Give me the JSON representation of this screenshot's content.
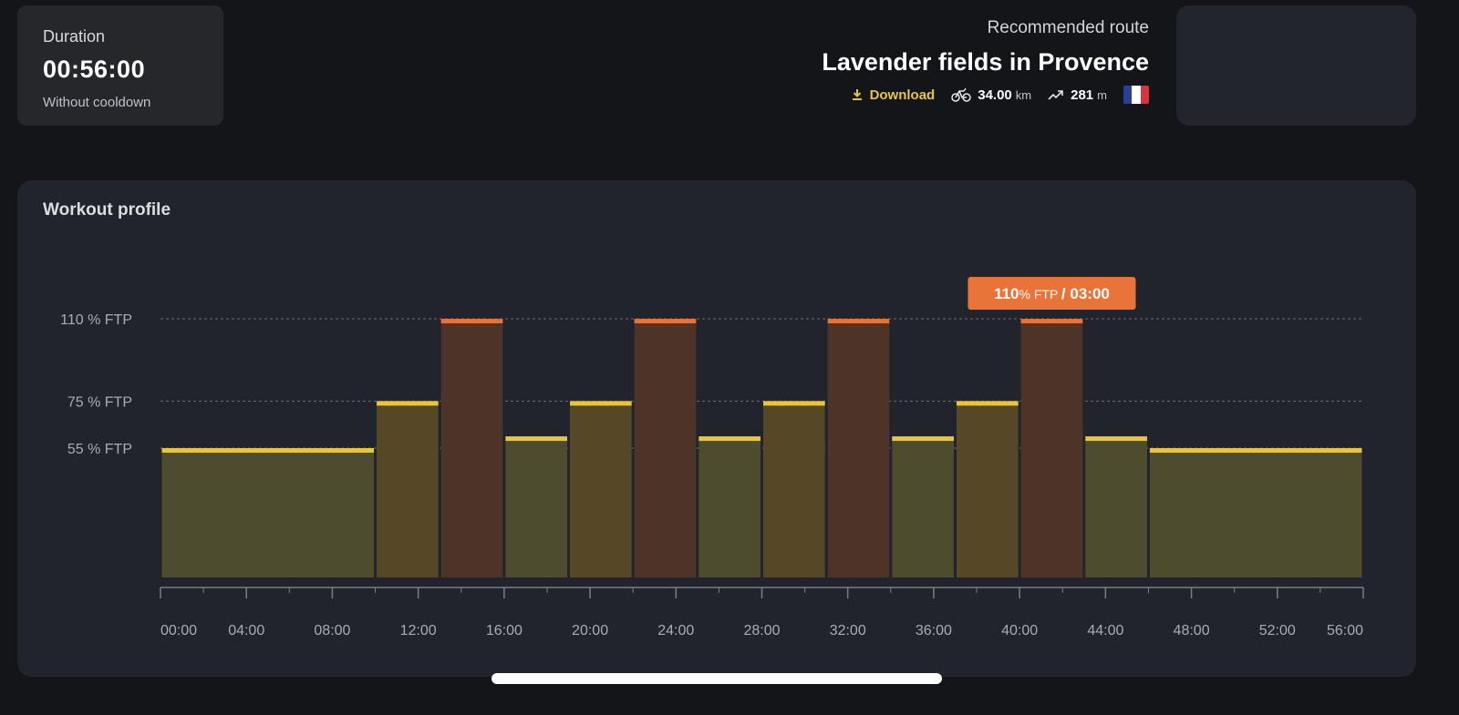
{
  "duration": {
    "label": "Duration",
    "value": "00:56:00",
    "subtitle": "Without cooldown"
  },
  "route": {
    "kicker": "Recommended route",
    "title": "Lavender fields in Provence",
    "download_label": "Download",
    "distance_value": "34.00",
    "distance_unit": "km",
    "elevation_value": "281",
    "elevation_unit": "m",
    "flag_colors": [
      "#2a3f9a",
      "#ffffff",
      "#d8343e"
    ]
  },
  "profile": {
    "title": "Workout profile"
  },
  "colors": {
    "accent": "#e8c53b",
    "tooltip": "#e8743a",
    "endurance_fill": "#4e4c2e",
    "endurance_line": "#e8c53b",
    "tempo_fill": "#564726",
    "threshold_fill": "#4e3329",
    "threshold_line": "#e2733a"
  },
  "chart_data": {
    "type": "bar",
    "title": "Workout profile",
    "y_reference_labels": [
      {
        "value": 110,
        "label": "110 % FTP"
      },
      {
        "value": 75,
        "label": "75 % FTP"
      },
      {
        "value": 55,
        "label": "55 % FTP"
      }
    ],
    "ylim": [
      0,
      110
    ],
    "x_unit": "minutes",
    "xlim": [
      0,
      56
    ],
    "x_tick_labels": [
      "00:00",
      "04:00",
      "08:00",
      "12:00",
      "16:00",
      "20:00",
      "24:00",
      "28:00",
      "32:00",
      "36:00",
      "40:00",
      "44:00",
      "48:00",
      "52:00",
      "56:00"
    ],
    "x_tick_values": [
      0,
      4,
      8,
      12,
      16,
      20,
      24,
      28,
      32,
      36,
      40,
      44,
      48,
      52,
      56
    ],
    "minor_tick_values": [
      2,
      6,
      10,
      14,
      18,
      22,
      26,
      30,
      34,
      38,
      42,
      46,
      50,
      54
    ],
    "segments": [
      {
        "start": 0,
        "end": 10,
        "ftp": 55,
        "zone": "endurance"
      },
      {
        "start": 10,
        "end": 13,
        "ftp": 75,
        "zone": "tempo"
      },
      {
        "start": 13,
        "end": 16,
        "ftp": 110,
        "zone": "threshold"
      },
      {
        "start": 16,
        "end": 19,
        "ftp": 60,
        "zone": "endurance"
      },
      {
        "start": 19,
        "end": 22,
        "ftp": 75,
        "zone": "tempo"
      },
      {
        "start": 22,
        "end": 25,
        "ftp": 110,
        "zone": "threshold"
      },
      {
        "start": 25,
        "end": 28,
        "ftp": 60,
        "zone": "endurance"
      },
      {
        "start": 28,
        "end": 31,
        "ftp": 75,
        "zone": "tempo"
      },
      {
        "start": 31,
        "end": 34,
        "ftp": 110,
        "zone": "threshold"
      },
      {
        "start": 34,
        "end": 37,
        "ftp": 60,
        "zone": "endurance"
      },
      {
        "start": 37,
        "end": 40,
        "ftp": 75,
        "zone": "tempo"
      },
      {
        "start": 40,
        "end": 43,
        "ftp": 110,
        "zone": "threshold"
      },
      {
        "start": 43,
        "end": 46,
        "ftp": 60,
        "zone": "endurance"
      },
      {
        "start": 46,
        "end": 56,
        "ftp": 55,
        "zone": "endurance"
      }
    ],
    "tooltip": {
      "segment_index": 11,
      "value": "110",
      "unit": "% FTP",
      "separator": "/",
      "duration": "03:00"
    }
  }
}
